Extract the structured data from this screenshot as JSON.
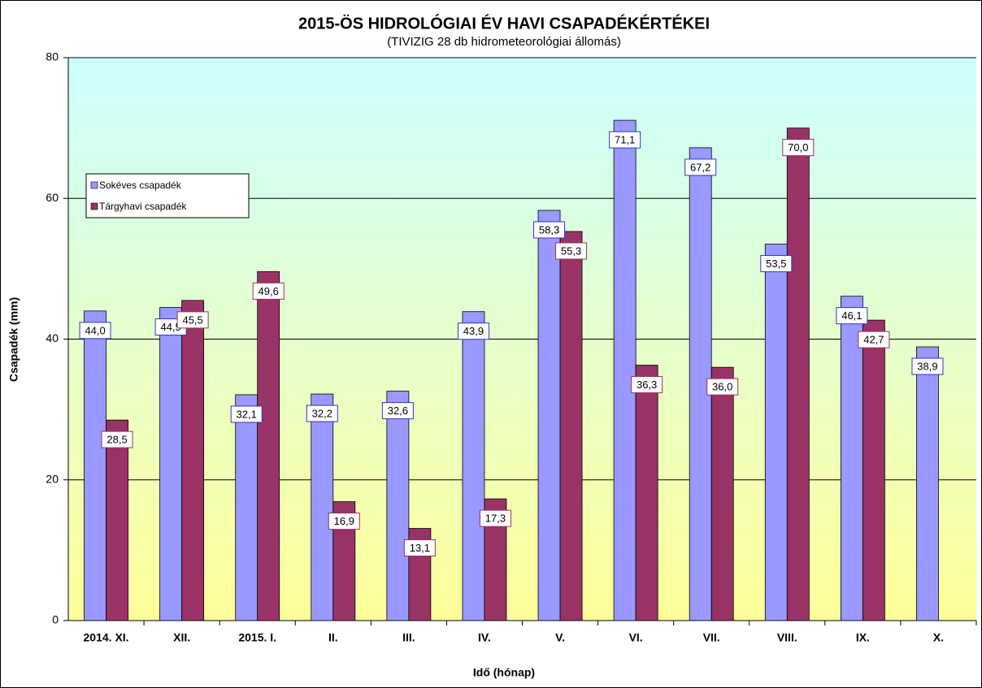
{
  "chart_data": {
    "type": "bar",
    "title": "2015-ÖS HIDROLÓGIAI ÉV HAVI CSAPADÉKÉRTÉKEI",
    "subtitle": "(TIVIZIG 28 db hidrometeorológiai állomás)",
    "x_label": "Idő (hónap)",
    "y_label": "Csapadék (mm)",
    "categories": [
      "2014. XI.",
      "XII.",
      "2015. I.",
      "II.",
      "III.",
      "IV.",
      "V.",
      "VI.",
      "VII.",
      "VIII.",
      "IX.",
      "X."
    ],
    "series": [
      {
        "name": "Sokéves csapadék",
        "color": "#9999ff",
        "label_border": "#3333cc",
        "values": [
          44.0,
          44.5,
          32.1,
          32.2,
          32.6,
          43.9,
          58.3,
          71.1,
          67.2,
          53.5,
          46.1,
          38.9
        ],
        "value_labels": [
          "44,0",
          "44,5",
          "32,1",
          "32,2",
          "32,6",
          "43,9",
          "58,3",
          "71,1",
          "67,2",
          "53,5",
          "46,1",
          "38,9"
        ]
      },
      {
        "name": "Tárgyhavi csapadék",
        "color": "#993366",
        "label_border": "#993366",
        "values": [
          28.5,
          45.5,
          49.6,
          16.9,
          13.1,
          17.3,
          55.3,
          36.3,
          36.0,
          70.0,
          42.7,
          null
        ],
        "value_labels": [
          "28,5",
          "45,5",
          "49,6",
          "16,9",
          "13,1",
          "17,3",
          "55,3",
          "36,3",
          "36,0",
          "70,0",
          "42,7",
          null
        ]
      }
    ],
    "ylim": [
      0,
      80
    ],
    "yticks": [
      0,
      20,
      40,
      60,
      80
    ],
    "grid": true,
    "legend": "upper left"
  }
}
